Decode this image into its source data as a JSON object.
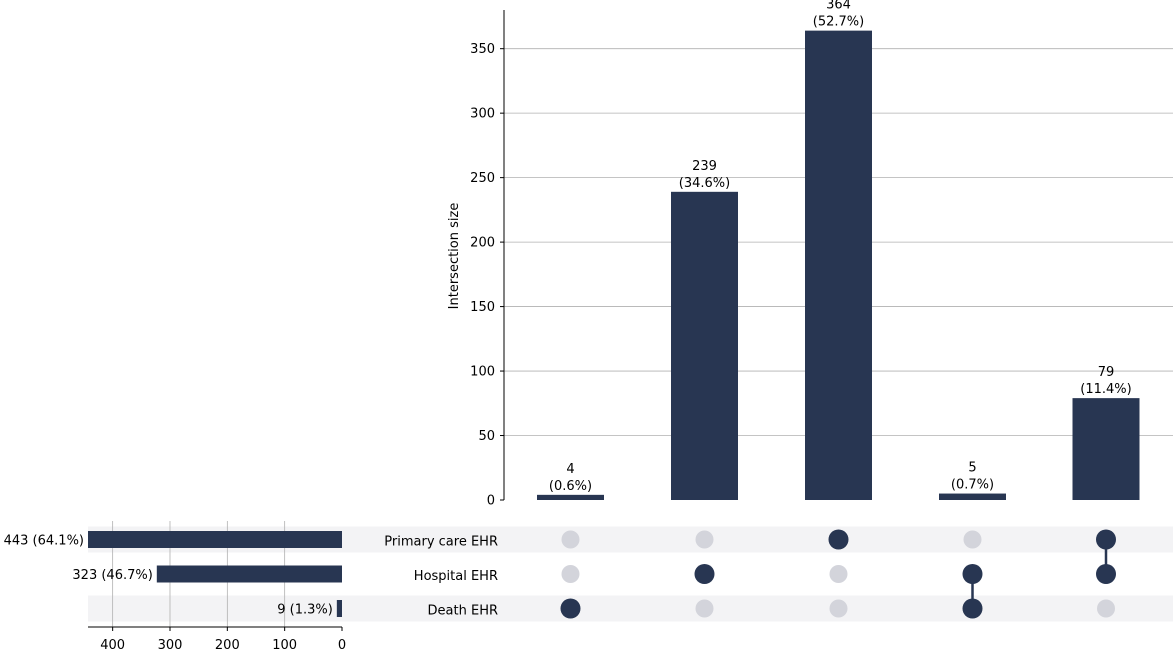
{
  "chart_data": {
    "type": "bar",
    "variant": "upset",
    "ylabel": "Intersection size",
    "ylim": [
      0,
      380
    ],
    "yticks": [
      0,
      50,
      100,
      150,
      200,
      250,
      300,
      350
    ],
    "grid": true,
    "sets": [
      {
        "name": "Primary care EHR",
        "size": 443,
        "label": "443 (64.1%)"
      },
      {
        "name": "Hospital EHR",
        "size": 323,
        "label": "323 (46.7%)"
      },
      {
        "name": "Death EHR",
        "size": 9,
        "label": "9 (1.3%)"
      }
    ],
    "set_size_ticks": [
      400,
      300,
      200,
      100,
      0
    ],
    "set_size_xlim": [
      0,
      443
    ],
    "intersections": [
      {
        "value": 4,
        "label_count": "4",
        "label_pct": "(0.6%)",
        "members": [
          false,
          false,
          true
        ]
      },
      {
        "value": 239,
        "label_count": "239",
        "label_pct": "(34.6%)",
        "members": [
          false,
          true,
          false
        ]
      },
      {
        "value": 364,
        "label_count": "364",
        "label_pct": "(52.7%)",
        "members": [
          true,
          false,
          false
        ]
      },
      {
        "value": 5,
        "label_count": "5",
        "label_pct": "(0.7%)",
        "members": [
          false,
          true,
          true
        ]
      },
      {
        "value": 79,
        "label_count": "79",
        "label_pct": "(11.4%)",
        "members": [
          true,
          true,
          false
        ]
      }
    ],
    "colors": {
      "bar": "#283652",
      "dot_inactive": "#d3d4db",
      "stripe": "#f3f3f5",
      "grid": "#b0b0b0"
    }
  }
}
